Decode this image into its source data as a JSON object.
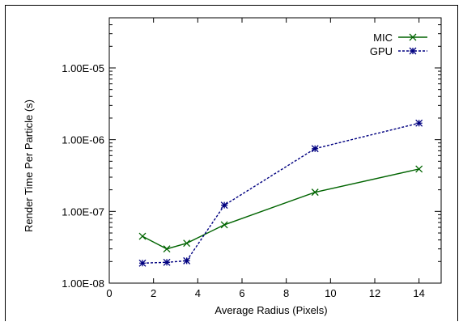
{
  "chart_data": {
    "type": "line",
    "xlabel": "Average Radius (Pixels)",
    "ylabel": "Render Time Per Particle (s)",
    "xlim": [
      0,
      15
    ],
    "ylim": [
      1e-08,
      5e-05
    ],
    "yscale": "log",
    "x_ticks": [
      "0",
      "2",
      "4",
      "6",
      "8",
      "10",
      "12",
      "14"
    ],
    "y_ticks": [
      "1.00E-08",
      "1.00E-07",
      "1.00E-06",
      "1.00E-05"
    ],
    "legend_position": "top-right",
    "grid": false,
    "series": [
      {
        "name": "MIC",
        "color": "#006400",
        "marker": "x",
        "line_style": "solid",
        "x": [
          1.5,
          2.6,
          3.5,
          5.2,
          9.3,
          14
        ],
        "y": [
          4.5e-08,
          3e-08,
          3.6e-08,
          6.5e-08,
          1.85e-07,
          3.9e-07
        ]
      },
      {
        "name": "GPU",
        "color": "#000080",
        "marker": "star",
        "line_style": "dashed",
        "x": [
          1.5,
          2.6,
          3.5,
          5.2,
          9.3,
          14
        ],
        "y": [
          1.9e-08,
          1.95e-08,
          2.05e-08,
          1.22e-07,
          7.5e-07,
          1.7e-06
        ]
      }
    ]
  }
}
